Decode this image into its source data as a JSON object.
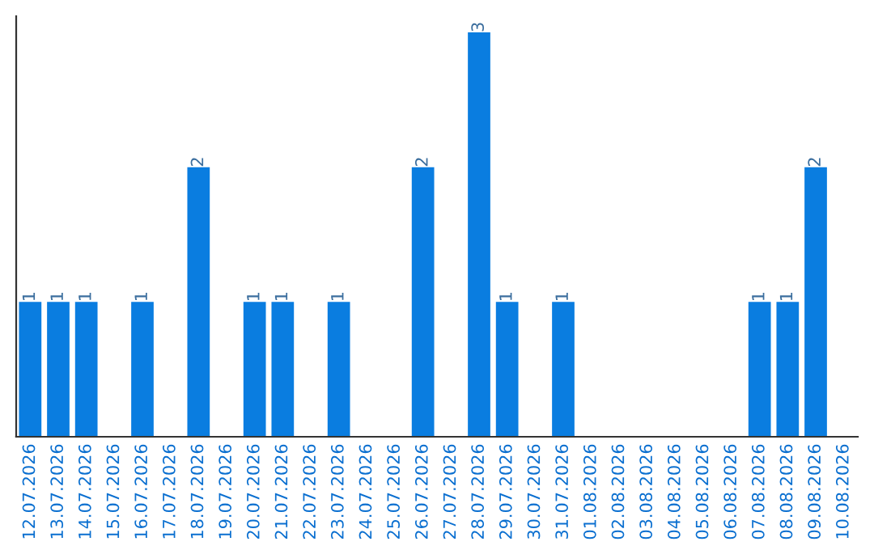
{
  "chart_data": {
    "type": "bar",
    "categories": [
      "12.07.2026",
      "13.07.2026",
      "14.07.2026",
      "15.07.2026",
      "16.07.2026",
      "17.07.2026",
      "18.07.2026",
      "19.07.2026",
      "20.07.2026",
      "21.07.2026",
      "22.07.2026",
      "23.07.2026",
      "24.07.2026",
      "25.07.2026",
      "26.07.2026",
      "27.07.2026",
      "28.07.2026",
      "29.07.2026",
      "30.07.2026",
      "31.07.2026",
      "01.08.2026",
      "02.08.2026",
      "03.08.2026",
      "04.08.2026",
      "05.08.2026",
      "06.08.2026",
      "07.08.2026",
      "08.08.2026",
      "09.08.2026",
      "10.08.2026"
    ],
    "values": [
      1,
      1,
      1,
      null,
      1,
      null,
      2,
      null,
      1,
      1,
      null,
      1,
      null,
      null,
      2,
      null,
      3,
      1,
      null,
      1,
      null,
      null,
      null,
      null,
      null,
      null,
      1,
      1,
      2,
      null
    ],
    "color": "#0a7de0",
    "data_labels": true,
    "tick_labels": "x",
    "grid": false,
    "legend": false
  }
}
